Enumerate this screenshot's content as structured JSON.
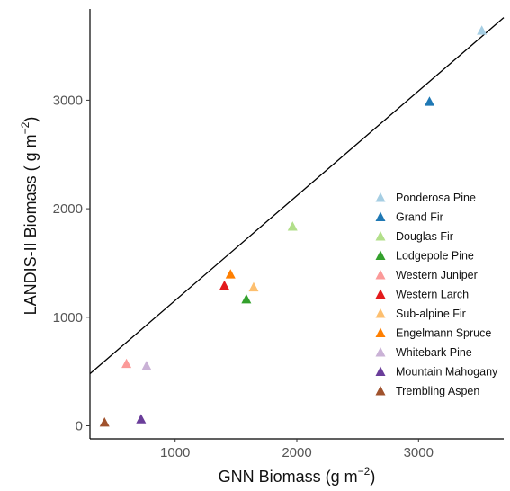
{
  "chart_data": {
    "type": "scatter",
    "xlabel": "GNN Biomass (g m",
    "ylabel": "LANDIS-II Biomass ( g m",
    "axis_unit_exponent": "−2",
    "x_ticks": [
      "1000",
      "2000",
      "3000"
    ],
    "y_ticks": [
      "0",
      "1000",
      "2000",
      "3000"
    ],
    "xlim": [
      300,
      3700
    ],
    "ylim": [
      -120,
      3840
    ],
    "grid": false,
    "legend_position": "right",
    "reference_line": {
      "intercept": 190,
      "slope": 0.965
    },
    "series": [
      {
        "name": "Ponderosa Pine",
        "color": "#a6cee3",
        "x": 3520,
        "y": 3640
      },
      {
        "name": "Grand Fir",
        "color": "#1f78b4",
        "x": 3090,
        "y": 2985
      },
      {
        "name": "Douglas Fir",
        "color": "#b2df8a",
        "x": 1965,
        "y": 1835
      },
      {
        "name": "Lodgepole Pine",
        "color": "#33a02c",
        "x": 1585,
        "y": 1165
      },
      {
        "name": "Western Juniper",
        "color": "#fb9a99",
        "x": 600,
        "y": 570
      },
      {
        "name": "Western Larch",
        "color": "#e31a1c",
        "x": 1405,
        "y": 1290
      },
      {
        "name": "Sub-alpine Fir",
        "color": "#fdbf6f",
        "x": 1645,
        "y": 1275
      },
      {
        "name": "Engelmann Spruce",
        "color": "#ff7f00",
        "x": 1455,
        "y": 1395
      },
      {
        "name": "Whitebark Pine",
        "color": "#cab2d6",
        "x": 765,
        "y": 550
      },
      {
        "name": "Mountain Mahogany",
        "color": "#6a3d9a",
        "x": 720,
        "y": 60
      },
      {
        "name": "Trembling Aspen",
        "color": "#a0522d",
        "x": 420,
        "y": 30
      }
    ]
  }
}
